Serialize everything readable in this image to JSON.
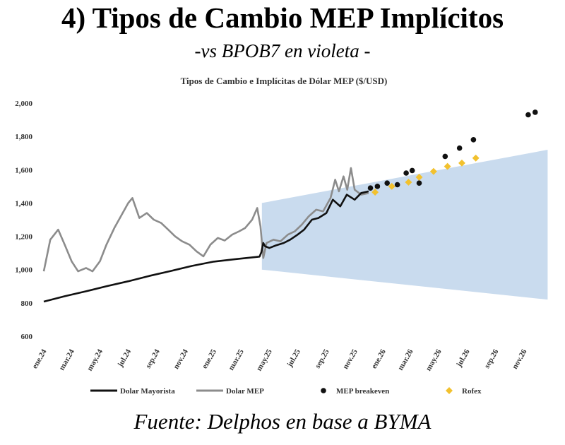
{
  "page": {
    "title": "4) Tipos de Cambio MEP Implícitos",
    "subtitle": "-vs BPOB7 en violeta -",
    "footer": "Fuente: Delphos en base a BYMA"
  },
  "chart_data": {
    "type": "line",
    "title": "Tipos de Cambio e Implícitas de Dólar MEP ($/USD)",
    "xlabel": "",
    "ylabel": "",
    "x_axis_type": "monthly",
    "x_tick_labels": [
      "ene.24",
      "mar.24",
      "may.24",
      "jul.24",
      "sep.24",
      "nov.24",
      "ene.25",
      "mar.25",
      "may.25",
      "jul.25",
      "sep.25",
      "nov.25",
      "ene.26",
      "mar.26",
      "may.26",
      "jul.26",
      "sep.26",
      "nov.26"
    ],
    "ylim": [
      600,
      2000
    ],
    "yticks": [
      "600",
      "800",
      "1,000",
      "1,200",
      "1,400",
      "1,600",
      "1,800",
      "2,000"
    ],
    "grid": false,
    "legend_position": "bottom",
    "colors": {
      "band": "#c9dbee",
      "mayorista": "#111111",
      "mep": "#8c8c8c",
      "breakeven": "#111111",
      "rofex": "#f2c12e"
    },
    "band": {
      "x_start": "2025-04-15",
      "x_end": "2026-12-31",
      "upper_start": 1400,
      "upper_end": 1720,
      "lower_start": 1000,
      "lower_end": 820
    },
    "series": [
      {
        "name": "Dolar Mayorista",
        "style": "line",
        "points": [
          [
            "2024-01-01",
            808
          ],
          [
            "2024-02-15",
            840
          ],
          [
            "2024-04-01",
            870
          ],
          [
            "2024-05-15",
            900
          ],
          [
            "2024-07-01",
            930
          ],
          [
            "2024-08-15",
            962
          ],
          [
            "2024-10-01",
            992
          ],
          [
            "2024-11-15",
            1022
          ],
          [
            "2025-01-01",
            1048
          ],
          [
            "2025-02-15",
            1062
          ],
          [
            "2025-04-10",
            1078
          ],
          [
            "2025-04-14",
            1105
          ],
          [
            "2025-04-18",
            1160
          ],
          [
            "2025-04-22",
            1140
          ],
          [
            "2025-05-01",
            1130
          ],
          [
            "2025-05-15",
            1145
          ],
          [
            "2025-06-01",
            1160
          ],
          [
            "2025-06-15",
            1180
          ],
          [
            "2025-07-01",
            1210
          ],
          [
            "2025-07-15",
            1240
          ],
          [
            "2025-08-01",
            1300
          ],
          [
            "2025-08-15",
            1310
          ],
          [
            "2025-09-01",
            1340
          ],
          [
            "2025-09-15",
            1420
          ],
          [
            "2025-10-01",
            1380
          ],
          [
            "2025-10-15",
            1450
          ],
          [
            "2025-11-01",
            1420
          ],
          [
            "2025-11-15",
            1460
          ],
          [
            "2025-12-01",
            1470
          ]
        ]
      },
      {
        "name": "Dolar MEP",
        "style": "line",
        "points": [
          [
            "2024-01-01",
            990
          ],
          [
            "2024-01-15",
            1180
          ],
          [
            "2024-02-01",
            1240
          ],
          [
            "2024-02-15",
            1150
          ],
          [
            "2024-03-01",
            1050
          ],
          [
            "2024-03-15",
            990
          ],
          [
            "2024-04-01",
            1010
          ],
          [
            "2024-04-15",
            990
          ],
          [
            "2024-05-01",
            1050
          ],
          [
            "2024-05-15",
            1150
          ],
          [
            "2024-06-01",
            1250
          ],
          [
            "2024-06-15",
            1320
          ],
          [
            "2024-07-01",
            1400
          ],
          [
            "2024-07-10",
            1430
          ],
          [
            "2024-07-25",
            1310
          ],
          [
            "2024-08-10",
            1340
          ],
          [
            "2024-08-25",
            1300
          ],
          [
            "2024-09-10",
            1280
          ],
          [
            "2024-09-25",
            1240
          ],
          [
            "2024-10-10",
            1200
          ],
          [
            "2024-10-25",
            1170
          ],
          [
            "2024-11-10",
            1150
          ],
          [
            "2024-11-25",
            1110
          ],
          [
            "2024-12-10",
            1080
          ],
          [
            "2024-12-25",
            1150
          ],
          [
            "2025-01-10",
            1190
          ],
          [
            "2025-01-25",
            1175
          ],
          [
            "2025-02-10",
            1210
          ],
          [
            "2025-02-25",
            1230
          ],
          [
            "2025-03-10",
            1250
          ],
          [
            "2025-03-25",
            1300
          ],
          [
            "2025-04-05",
            1370
          ],
          [
            "2025-04-12",
            1260
          ],
          [
            "2025-04-18",
            1070
          ],
          [
            "2025-04-25",
            1160
          ],
          [
            "2025-05-10",
            1180
          ],
          [
            "2025-05-25",
            1170
          ],
          [
            "2025-06-10",
            1210
          ],
          [
            "2025-06-25",
            1230
          ],
          [
            "2025-07-10",
            1270
          ],
          [
            "2025-07-25",
            1320
          ],
          [
            "2025-08-10",
            1360
          ],
          [
            "2025-08-25",
            1350
          ],
          [
            "2025-09-10",
            1430
          ],
          [
            "2025-09-20",
            1540
          ],
          [
            "2025-09-28",
            1470
          ],
          [
            "2025-10-08",
            1560
          ],
          [
            "2025-10-16",
            1480
          ],
          [
            "2025-10-24",
            1610
          ],
          [
            "2025-11-01",
            1480
          ],
          [
            "2025-11-15",
            1450
          ],
          [
            "2025-12-01",
            1460
          ]
        ]
      },
      {
        "name": "MEP breakeven",
        "style": "scatter",
        "points": [
          [
            "2025-12-05",
            1490
          ],
          [
            "2025-12-20",
            1500
          ],
          [
            "2026-01-10",
            1520
          ],
          [
            "2026-02-01",
            1510
          ],
          [
            "2026-02-20",
            1580
          ],
          [
            "2026-03-05",
            1595
          ],
          [
            "2026-03-20",
            1520
          ],
          [
            "2026-05-15",
            1680
          ],
          [
            "2026-06-15",
            1730
          ],
          [
            "2026-07-15",
            1780
          ],
          [
            "2026-11-10",
            1930
          ],
          [
            "2026-11-25",
            1945
          ]
        ]
      },
      {
        "name": "Rofex",
        "style": "scatter",
        "points": [
          [
            "2025-12-15",
            1465
          ],
          [
            "2026-01-20",
            1500
          ],
          [
            "2026-02-25",
            1525
          ],
          [
            "2026-03-20",
            1555
          ],
          [
            "2026-04-20",
            1590
          ],
          [
            "2026-05-20",
            1620
          ],
          [
            "2026-06-20",
            1640
          ],
          [
            "2026-07-20",
            1670
          ]
        ]
      }
    ]
  }
}
